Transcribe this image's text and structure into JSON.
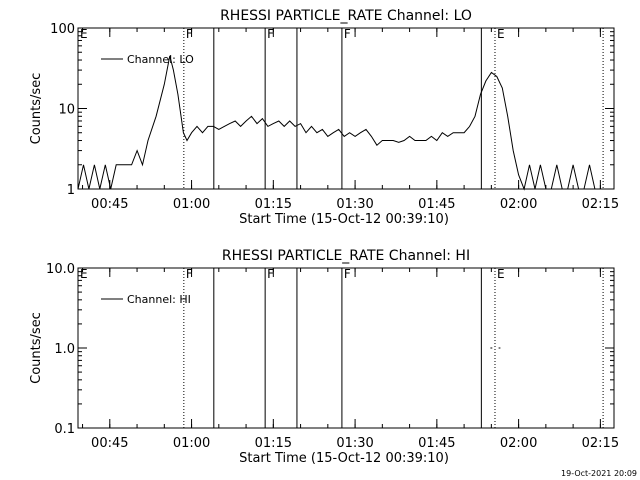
{
  "footer_stamp": "19-Oct-2021 20:09",
  "chart_data": [
    {
      "type": "line",
      "title": "RHESSI PARTICLE_RATE Channel: LO",
      "xlabel": "Start Time (15-Oct-12 00:39:10)",
      "ylabel": "Counts/sec",
      "y_scale": "log",
      "ylim": [
        1,
        100
      ],
      "yticks": [
        {
          "v": 1,
          "label": "1"
        },
        {
          "v": 10,
          "label": "10"
        },
        {
          "v": 100,
          "label": "100"
        }
      ],
      "xlim": [
        "00:39:10",
        "02:17:30"
      ],
      "xticks": [
        {
          "t": "00:45",
          "label": "00:45"
        },
        {
          "t": "01:00",
          "label": "01:00"
        },
        {
          "t": "01:15",
          "label": "01:15"
        },
        {
          "t": "01:30",
          "label": "01:30"
        },
        {
          "t": "01:45",
          "label": "01:45"
        },
        {
          "t": "02:00",
          "label": "02:00"
        },
        {
          "t": "02:15",
          "label": "02:15"
        }
      ],
      "legend": {
        "label": "Channel: LO",
        "placement": "top-left"
      },
      "markers": [
        {
          "t": "00:39:10",
          "style": "dotted",
          "letter": "E"
        },
        {
          "t": "00:58:35",
          "style": "dotted",
          "letter": "F"
        },
        {
          "t": "01:04:05",
          "style": "solid",
          "letter": ""
        },
        {
          "t": "01:13:30",
          "style": "solid",
          "letter": "F"
        },
        {
          "t": "01:19:20",
          "style": "solid",
          "letter": ""
        },
        {
          "t": "01:27:35",
          "style": "solid",
          "letter": "F"
        },
        {
          "t": "01:53:10",
          "style": "solid",
          "letter": ""
        },
        {
          "t": "01:55:40",
          "style": "dotted",
          "letter": "E"
        },
        {
          "t": "02:15:30",
          "style": "dotted",
          "letter": ""
        }
      ],
      "series": [
        {
          "name": "Channel: LO",
          "points": [
            [
              "00:39:10",
              1
            ],
            [
              "00:40:10",
              2
            ],
            [
              "00:41:10",
              1
            ],
            [
              "00:42:10",
              2
            ],
            [
              "00:43:10",
              1
            ],
            [
              "00:44:10",
              2
            ],
            [
              "00:45:10",
              1
            ],
            [
              "00:46:10",
              2
            ],
            [
              "00:47:30",
              2
            ],
            [
              "00:49:00",
              2
            ],
            [
              "00:50:00",
              3
            ],
            [
              "00:51:00",
              2
            ],
            [
              "00:52:00",
              4
            ],
            [
              "00:53:30",
              8
            ],
            [
              "00:55:00",
              20
            ],
            [
              "00:56:00",
              45
            ],
            [
              "00:56:40",
              30
            ],
            [
              "00:57:30",
              15
            ],
            [
              "00:58:30",
              5
            ],
            [
              "00:59:10",
              4
            ],
            [
              "01:00:00",
              5
            ],
            [
              "01:01:00",
              6
            ],
            [
              "01:02:00",
              5
            ],
            [
              "01:03:00",
              6
            ],
            [
              "01:04:00",
              6
            ],
            [
              "01:05:00",
              5.5
            ],
            [
              "01:06:00",
              6
            ],
            [
              "01:07:00",
              6.5
            ],
            [
              "01:08:00",
              7
            ],
            [
              "01:09:00",
              6
            ],
            [
              "01:10:00",
              7
            ],
            [
              "01:11:00",
              8
            ],
            [
              "01:12:00",
              6.5
            ],
            [
              "01:13:00",
              7.5
            ],
            [
              "01:14:00",
              6
            ],
            [
              "01:15:00",
              6.5
            ],
            [
              "01:16:00",
              7
            ],
            [
              "01:17:00",
              6
            ],
            [
              "01:18:00",
              7
            ],
            [
              "01:19:00",
              6
            ],
            [
              "01:20:00",
              6.5
            ],
            [
              "01:21:00",
              5
            ],
            [
              "01:22:00",
              6
            ],
            [
              "01:23:00",
              5
            ],
            [
              "01:24:00",
              5.5
            ],
            [
              "01:25:00",
              4.5
            ],
            [
              "01:26:00",
              5
            ],
            [
              "01:27:00",
              5.5
            ],
            [
              "01:28:00",
              4.5
            ],
            [
              "01:29:00",
              5
            ],
            [
              "01:30:00",
              4.5
            ],
            [
              "01:31:00",
              5
            ],
            [
              "01:32:00",
              5.5
            ],
            [
              "01:33:00",
              4.5
            ],
            [
              "01:34:00",
              3.5
            ],
            [
              "01:35:00",
              4
            ],
            [
              "01:36:00",
              4
            ],
            [
              "01:37:00",
              4
            ],
            [
              "01:38:00",
              3.8
            ],
            [
              "01:39:00",
              4
            ],
            [
              "01:40:00",
              4.5
            ],
            [
              "01:41:00",
              4
            ],
            [
              "01:42:00",
              4
            ],
            [
              "01:43:00",
              4
            ],
            [
              "01:44:00",
              4.5
            ],
            [
              "01:45:00",
              4
            ],
            [
              "01:46:00",
              5
            ],
            [
              "01:47:00",
              4.5
            ],
            [
              "01:48:00",
              5
            ],
            [
              "01:49:00",
              5
            ],
            [
              "01:50:00",
              5
            ],
            [
              "01:51:00",
              6
            ],
            [
              "01:52:00",
              8
            ],
            [
              "01:53:00",
              15
            ],
            [
              "01:54:00",
              22
            ],
            [
              "01:55:00",
              28
            ],
            [
              "01:56:00",
              25
            ],
            [
              "01:57:00",
              18
            ],
            [
              "01:58:00",
              8
            ],
            [
              "01:59:00",
              3
            ],
            [
              "02:00:00",
              1.5
            ],
            [
              "02:01:00",
              1
            ],
            [
              "02:02:00",
              2
            ],
            [
              "02:03:00",
              1
            ],
            [
              "02:04:00",
              2
            ],
            [
              "02:05:00",
              1
            ],
            [
              "02:06:00",
              1
            ],
            [
              "02:07:00",
              2
            ],
            [
              "02:08:00",
              1
            ],
            [
              "02:09:00",
              1
            ],
            [
              "02:10:00",
              2
            ],
            [
              "02:11:00",
              1
            ],
            [
              "02:12:00",
              1
            ],
            [
              "02:13:00",
              2
            ],
            [
              "02:14:00",
              1
            ]
          ]
        }
      ]
    },
    {
      "type": "line",
      "title": "RHESSI PARTICLE_RATE Channel: HI",
      "xlabel": "Start Time (15-Oct-12 00:39:10)",
      "ylabel": "Counts/sec",
      "y_scale": "log",
      "ylim": [
        0.1,
        10
      ],
      "yticks": [
        {
          "v": 0.1,
          "label": "0.1"
        },
        {
          "v": 1,
          "label": "1.0"
        },
        {
          "v": 10,
          "label": "10.0"
        }
      ],
      "xlim": [
        "00:39:10",
        "02:17:30"
      ],
      "xticks": [
        {
          "t": "00:45",
          "label": "00:45"
        },
        {
          "t": "01:00",
          "label": "01:00"
        },
        {
          "t": "01:15",
          "label": "01:15"
        },
        {
          "t": "01:30",
          "label": "01:30"
        },
        {
          "t": "01:45",
          "label": "01:45"
        },
        {
          "t": "02:00",
          "label": "02:00"
        },
        {
          "t": "02:15",
          "label": "02:15"
        }
      ],
      "legend": {
        "label": "Channel: HI",
        "placement": "top-left"
      },
      "markers": [
        {
          "t": "00:39:10",
          "style": "dotted",
          "letter": "E"
        },
        {
          "t": "00:58:35",
          "style": "dotted",
          "letter": "F"
        },
        {
          "t": "01:04:05",
          "style": "solid",
          "letter": ""
        },
        {
          "t": "01:13:30",
          "style": "solid",
          "letter": "F"
        },
        {
          "t": "01:19:20",
          "style": "solid",
          "letter": ""
        },
        {
          "t": "01:27:35",
          "style": "solid",
          "letter": "F"
        },
        {
          "t": "01:53:10",
          "style": "solid",
          "letter": ""
        },
        {
          "t": "01:55:40",
          "style": "dotted",
          "letter": "E"
        },
        {
          "t": "02:15:30",
          "style": "dotted",
          "letter": ""
        }
      ],
      "series": [
        {
          "name": "Channel: HI",
          "segments": [
            [
              [
                "01:54:50",
                1.0
              ],
              [
                "01:55:10",
                1.0
              ]
            ],
            [
              [
                "01:56:20",
                1.0
              ],
              [
                "01:56:40",
                1.0
              ]
            ]
          ]
        }
      ]
    }
  ]
}
